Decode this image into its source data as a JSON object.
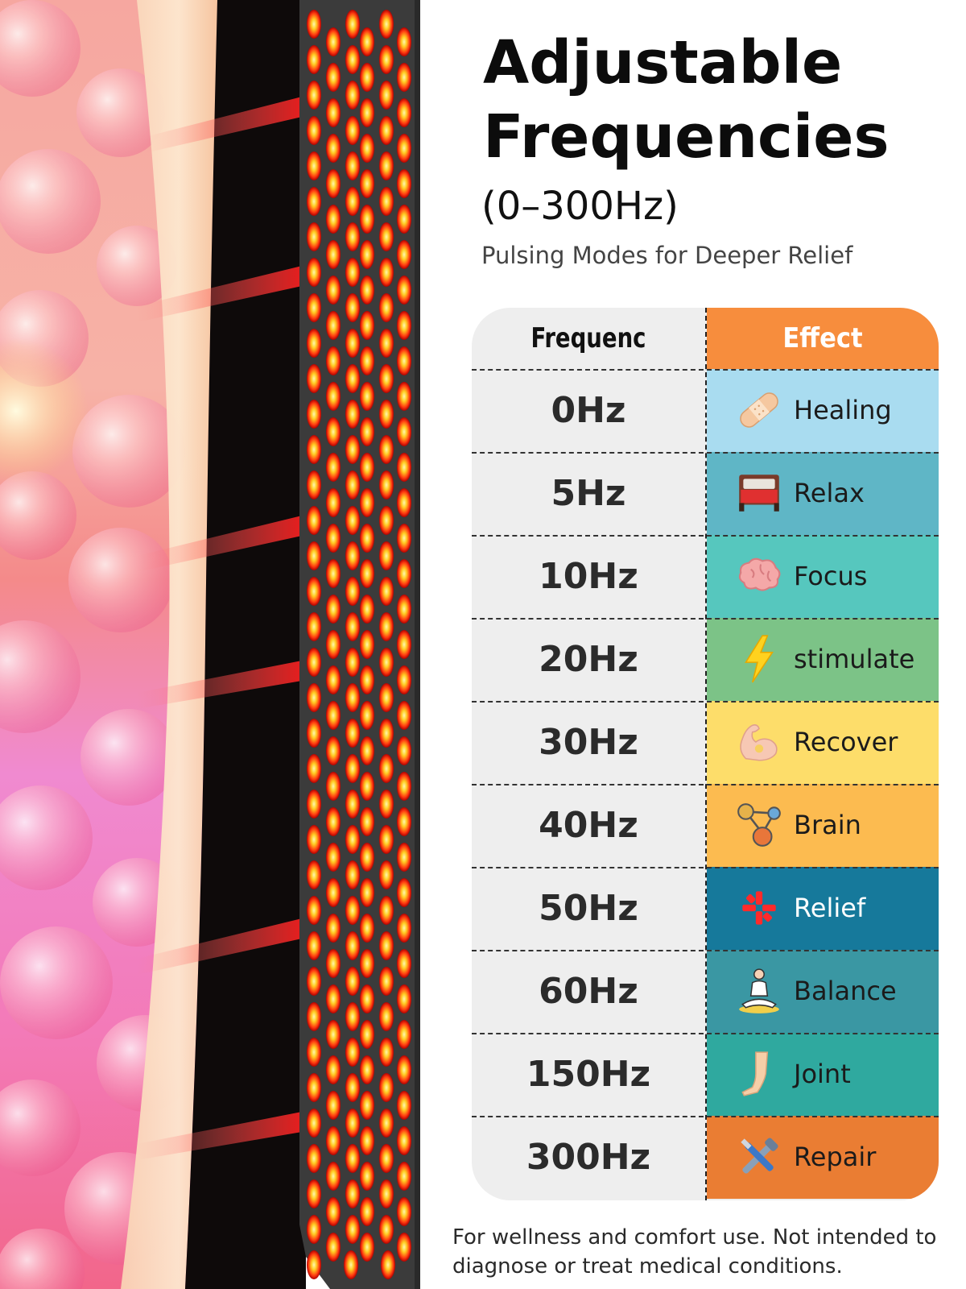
{
  "title": {
    "line1": "Adjustable",
    "line2": "Frequencies",
    "range": "(0–300Hz)",
    "subtitle": "Pulsing Modes for Deeper Relief"
  },
  "table": {
    "headers": {
      "frequency": "Frequenc",
      "effect": "Effect"
    },
    "header_effect_color": "#f78d3d",
    "rows": [
      {
        "frequency": "0Hz",
        "effect": "Healing",
        "icon": "bandage-icon",
        "color": "#a9dcf0",
        "light_text": false
      },
      {
        "frequency": "5Hz",
        "effect": "Relax",
        "icon": "bed-icon",
        "color": "#5fb6c6",
        "light_text": false
      },
      {
        "frequency": "10Hz",
        "effect": "Focus",
        "icon": "brain-icon",
        "color": "#56c7be",
        "light_text": false
      },
      {
        "frequency": "20Hz",
        "effect": "stimulate",
        "icon": "lightning-icon",
        "color": "#7cc387",
        "light_text": false
      },
      {
        "frequency": "30Hz",
        "effect": "Recover",
        "icon": "muscle-icon",
        "color": "#fddd6a",
        "light_text": false
      },
      {
        "frequency": "40Hz",
        "effect": "Brain",
        "icon": "molecule-icon",
        "color": "#fcbb50",
        "light_text": false
      },
      {
        "frequency": "50Hz",
        "effect": "Relief",
        "icon": "pain-burst-icon",
        "color": "#16799b",
        "light_text": true
      },
      {
        "frequency": "60Hz",
        "effect": "Balance",
        "icon": "meditation-icon",
        "color": "#3a97a3",
        "light_text": false
      },
      {
        "frequency": "150Hz",
        "effect": "Joint",
        "icon": "leg-joint-icon",
        "color": "#2fa99f",
        "light_text": false
      },
      {
        "frequency": "300Hz",
        "effect": "Repair",
        "icon": "tools-icon",
        "color": "#ea7d33",
        "light_text": false
      }
    ]
  },
  "footer": "For wellness and comfort use. Not intended to diagnose or treat medical conditions."
}
